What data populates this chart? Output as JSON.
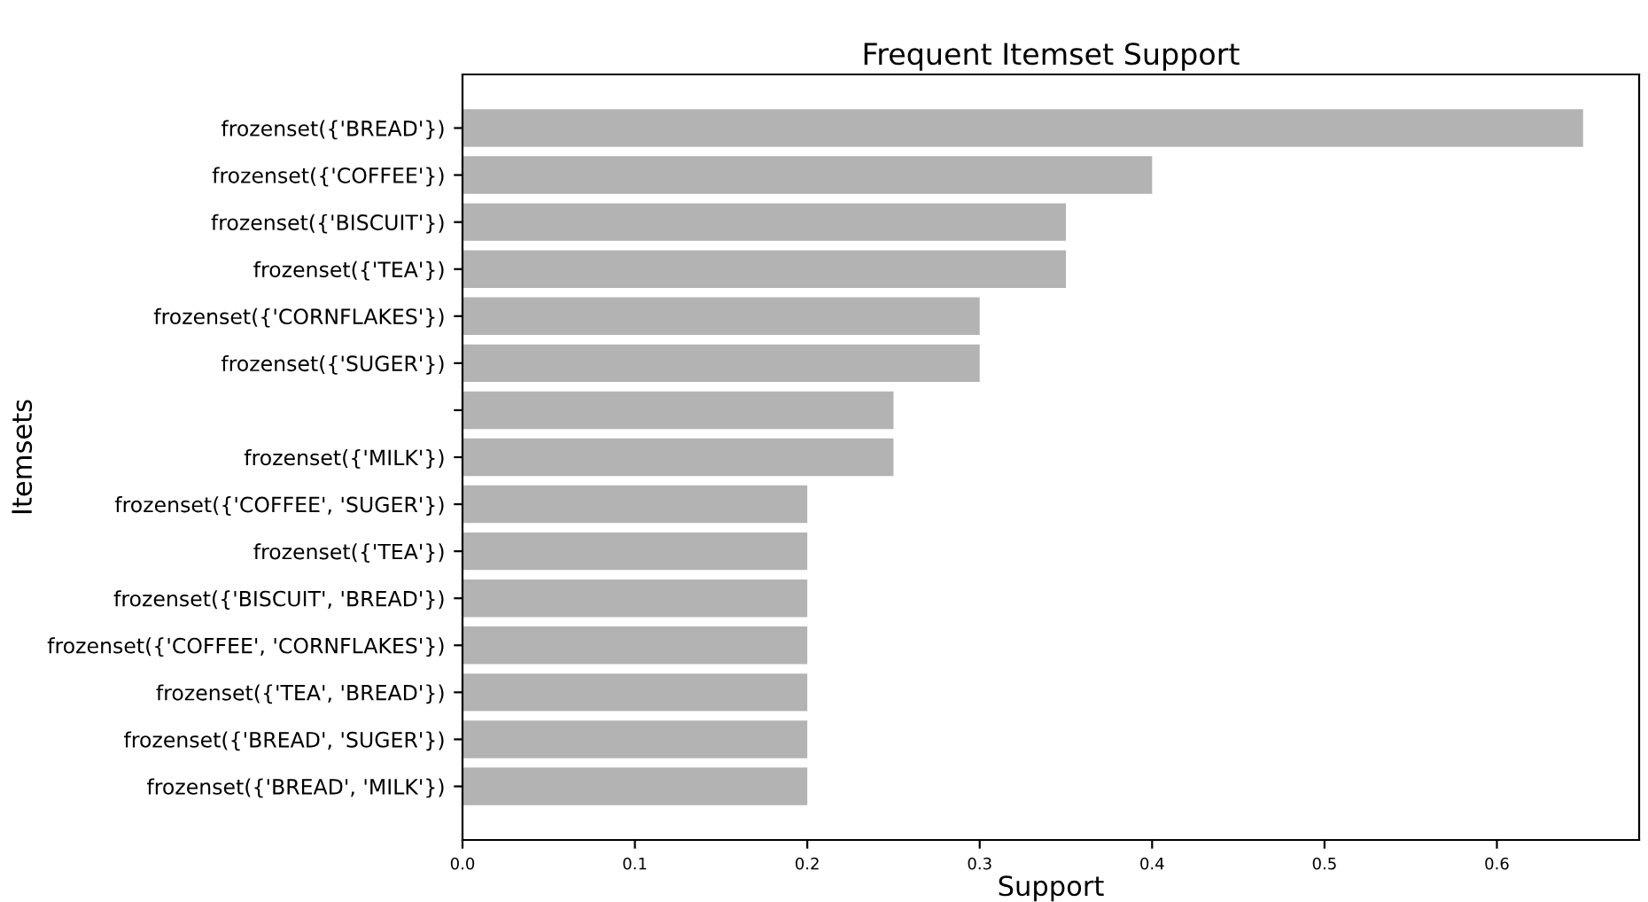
{
  "chart_data": {
    "type": "bar",
    "orientation": "horizontal",
    "title": "Frequent Itemset Support",
    "xlabel": "Support",
    "ylabel": "Itemsets",
    "categories": [
      "frozenset({'BREAD'})",
      "frozenset({'COFFEE'})",
      "frozenset({'BISCUIT'})",
      "frozenset({'TEA'})",
      "frozenset({'CORNFLAKES'})",
      "frozenset({'SUGER'})",
      null,
      "frozenset({'MILK'})",
      "frozenset({'COFFEE', 'SUGER'})",
      "frozenset({'TEA'})",
      "frozenset({'BISCUIT', 'BREAD'})",
      "frozenset({'COFFEE', 'CORNFLAKES'})",
      "frozenset({'TEA', 'BREAD'})",
      "frozenset({'BREAD', 'SUGER'})",
      "frozenset({'BREAD', 'MILK'})"
    ],
    "values": [
      0.65,
      0.4,
      0.35,
      0.35,
      0.3,
      0.3,
      0.25,
      0.25,
      0.2,
      0.2,
      0.2,
      0.2,
      0.2,
      0.2,
      0.2
    ],
    "color": "#b3b3b3",
    "xlim": [
      0,
      0.6825
    ],
    "xticks": [
      {
        "value": 0,
        "label": "0.0"
      },
      0.1,
      0.2,
      0.3,
      0.4,
      0.5,
      0.6
    ],
    "grid": false,
    "legend": false
  }
}
